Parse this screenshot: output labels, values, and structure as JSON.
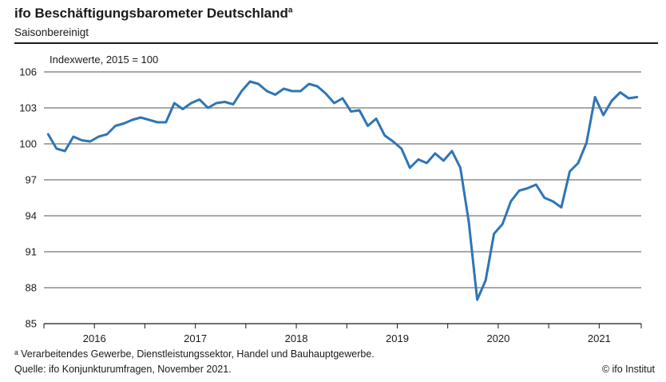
{
  "header": {
    "title": "ifo Beschäftigungsbarometer Deutschland",
    "title_sup": "a",
    "subtitle": "Saisonbereinigt"
  },
  "footer": {
    "footnote": "ᵃ Verarbeitendes Gewerbe, Dienstleistungssektor, Handel und Bauhauptgewerbe.",
    "source": "Quelle: ifo Konjunkturumfragen, November 2021.",
    "copyright": "© ifo Institut"
  },
  "colors": {
    "line": "#2E75B6",
    "grid": "#1a1a1a",
    "text": "#1a1a1a"
  },
  "chart_data": {
    "type": "line",
    "ylabel": "Indexwerte, 2015 = 100",
    "ylim": [
      85,
      106
    ],
    "yticks": [
      "85",
      "88",
      "91",
      "94",
      "97",
      "100",
      "103",
      "106"
    ],
    "xticks": [
      "2016",
      "2017",
      "2018",
      "2019",
      "2020",
      "2021"
    ],
    "grid": "horizontal",
    "x_start": "2016-01",
    "x_end": "2021-11",
    "x": [
      "2016-01",
      "2016-02",
      "2016-03",
      "2016-04",
      "2016-05",
      "2016-06",
      "2016-07",
      "2016-08",
      "2016-09",
      "2016-10",
      "2016-11",
      "2016-12",
      "2017-01",
      "2017-02",
      "2017-03",
      "2017-04",
      "2017-05",
      "2017-06",
      "2017-07",
      "2017-08",
      "2017-09",
      "2017-10",
      "2017-11",
      "2017-12",
      "2018-01",
      "2018-02",
      "2018-03",
      "2018-04",
      "2018-05",
      "2018-06",
      "2018-07",
      "2018-08",
      "2018-09",
      "2018-10",
      "2018-11",
      "2018-12",
      "2019-01",
      "2019-02",
      "2019-03",
      "2019-04",
      "2019-05",
      "2019-06",
      "2019-07",
      "2019-08",
      "2019-09",
      "2019-10",
      "2019-11",
      "2019-12",
      "2020-01",
      "2020-02",
      "2020-03",
      "2020-04",
      "2020-05",
      "2020-06",
      "2020-07",
      "2020-08",
      "2020-09",
      "2020-10",
      "2020-11",
      "2020-12",
      "2021-01",
      "2021-02",
      "2021-03",
      "2021-04",
      "2021-05",
      "2021-06",
      "2021-07",
      "2021-08",
      "2021-09",
      "2021-10",
      "2021-11"
    ],
    "series": [
      {
        "color": "#2E75B6",
        "values": [
          100.8,
          99.6,
          99.4,
          100.6,
          100.3,
          100.2,
          100.6,
          100.8,
          101.5,
          101.7,
          102.0,
          102.2,
          102.0,
          101.8,
          101.8,
          103.4,
          102.9,
          103.4,
          103.7,
          103.0,
          103.4,
          103.5,
          103.3,
          104.4,
          105.2,
          105.0,
          104.4,
          104.1,
          104.6,
          104.4,
          104.4,
          105.0,
          104.8,
          104.2,
          103.4,
          103.8,
          102.7,
          102.8,
          101.5,
          102.1,
          100.7,
          100.2,
          99.6,
          98.0,
          98.7,
          98.4,
          99.2,
          98.6,
          99.4,
          98.0,
          93.5,
          87.0,
          88.6,
          92.5,
          93.3,
          95.2,
          96.1,
          96.3,
          96.6,
          95.5,
          95.2,
          94.7,
          97.7,
          98.4,
          100.1,
          103.9,
          102.4,
          103.6,
          104.3,
          103.8,
          103.9
        ]
      }
    ]
  }
}
